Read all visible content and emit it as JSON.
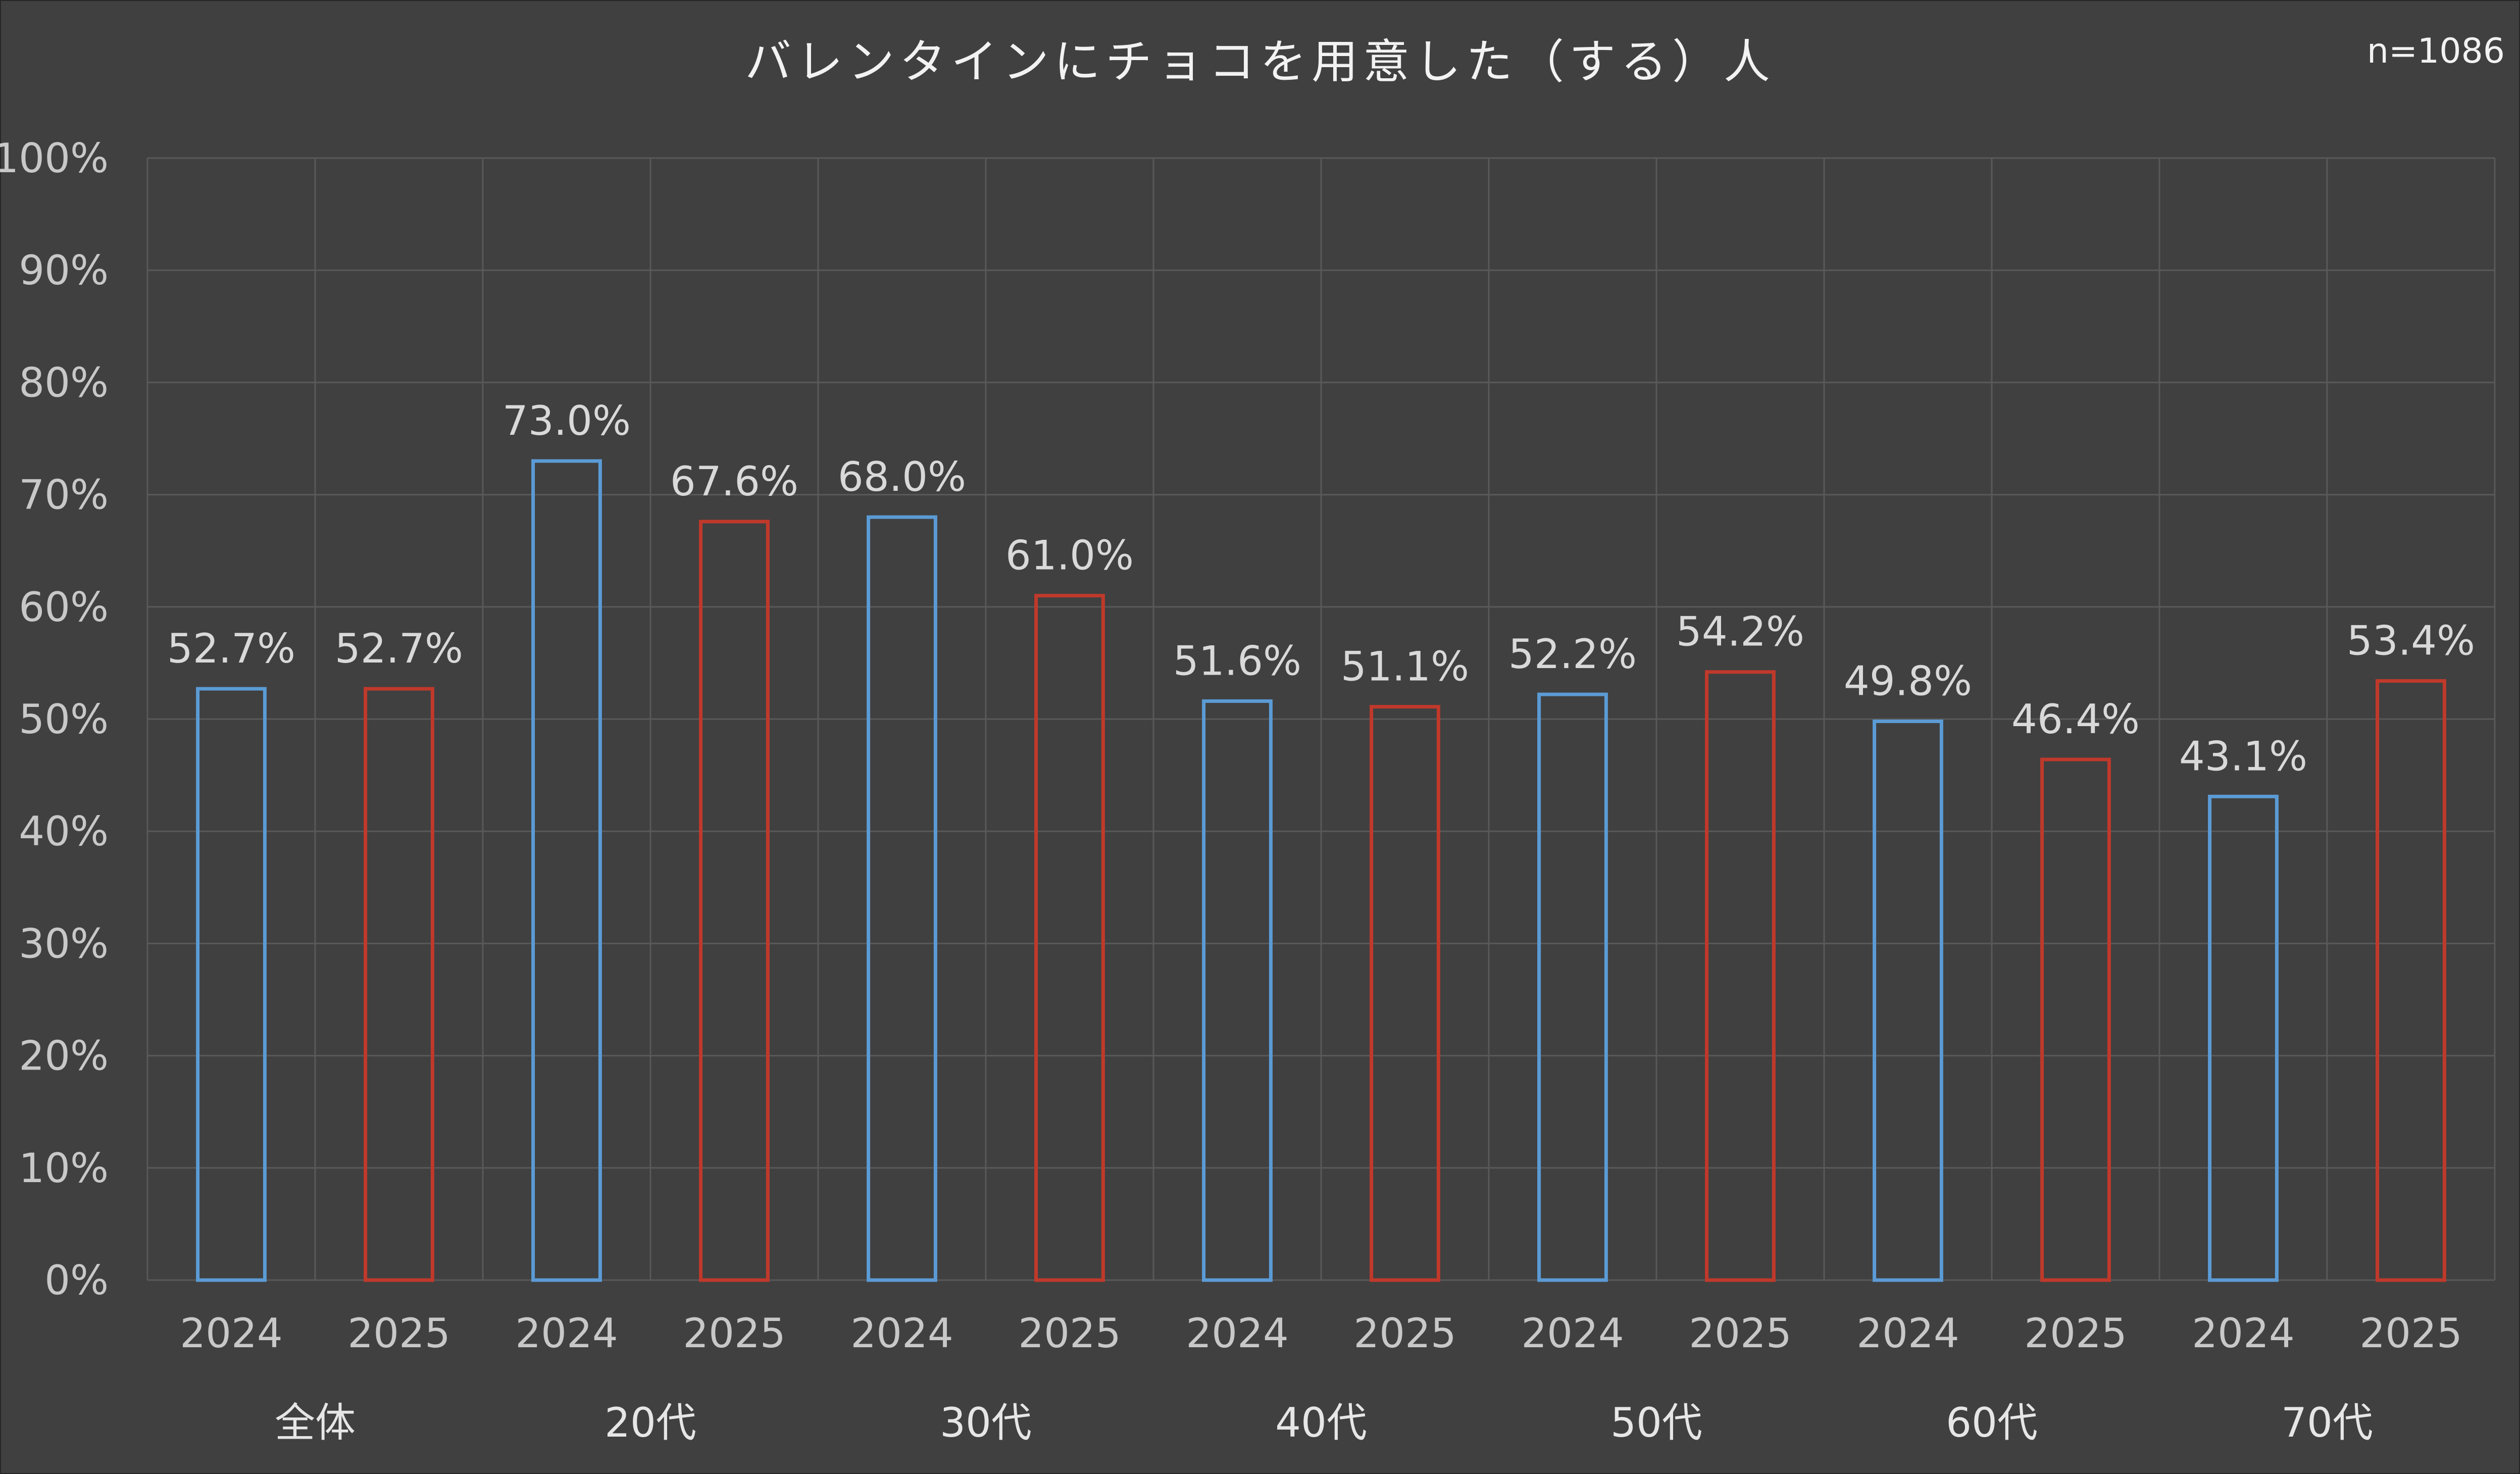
{
  "title": "バレンタインにチョコを用意した（する）人",
  "sample_size": "n=1086",
  "colors": {
    "2024": "#5b9bd5",
    "2025": "#c0392b",
    "background": "#404040",
    "grid": "#595959"
  },
  "chart_data": {
    "type": "bar",
    "title": "バレンタインにチョコを用意した（する）人",
    "ylim": [
      0,
      100
    ],
    "yticks": [
      "0%",
      "10%",
      "20%",
      "30%",
      "40%",
      "50%",
      "60%",
      "70%",
      "80%",
      "90%",
      "100%"
    ],
    "grid": true,
    "groups": [
      {
        "label": "全体",
        "bars": [
          {
            "year": "2024",
            "value": 52.7,
            "label": "52.7%"
          },
          {
            "year": "2025",
            "value": 52.7,
            "label": "52.7%"
          }
        ]
      },
      {
        "label": "20代",
        "bars": [
          {
            "year": "2024",
            "value": 73.0,
            "label": "73.0%"
          },
          {
            "year": "2025",
            "value": 67.6,
            "label": "67.6%"
          }
        ]
      },
      {
        "label": "30代",
        "bars": [
          {
            "year": "2024",
            "value": 68.0,
            "label": "68.0%"
          },
          {
            "year": "2025",
            "value": 61.0,
            "label": "61.0%"
          }
        ]
      },
      {
        "label": "40代",
        "bars": [
          {
            "year": "2024",
            "value": 51.6,
            "label": "51.6%"
          },
          {
            "year": "2025",
            "value": 51.1,
            "label": "51.1%"
          }
        ]
      },
      {
        "label": "50代",
        "bars": [
          {
            "year": "2024",
            "value": 52.2,
            "label": "52.2%"
          },
          {
            "year": "2025",
            "value": 54.2,
            "label": "54.2%"
          }
        ]
      },
      {
        "label": "60代",
        "bars": [
          {
            "year": "2024",
            "value": 49.8,
            "label": "49.8%"
          },
          {
            "year": "2025",
            "value": 46.4,
            "label": "46.4%"
          }
        ]
      },
      {
        "label": "70代",
        "bars": [
          {
            "year": "2024",
            "value": 43.1,
            "label": "43.1%"
          },
          {
            "year": "2025",
            "value": 53.4,
            "label": "53.4%"
          }
        ]
      }
    ]
  }
}
